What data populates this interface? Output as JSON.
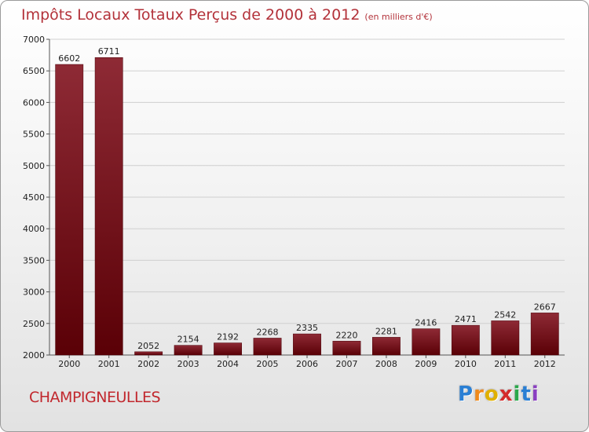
{
  "title": "Impôts Locaux Totaux Perçus de 2000 à 2012",
  "subtitle": "(en milliers d'€)",
  "location": "CHAMPIGNEULLES",
  "logo": {
    "letters": [
      "P",
      "r",
      "o",
      "x",
      "i",
      "t",
      "i"
    ],
    "colors": [
      "#2a7fd4",
      "#f08a1c",
      "#e0b000",
      "#d42a2a",
      "#2aa84a",
      "#2a7fd4",
      "#8a3fc1"
    ]
  },
  "chart_data": {
    "type": "bar",
    "categories": [
      "2000",
      "2001",
      "2002",
      "2003",
      "2004",
      "2005",
      "2006",
      "2007",
      "2008",
      "2009",
      "2010",
      "2011",
      "2012"
    ],
    "values": [
      6602,
      6711,
      2052,
      2154,
      2192,
      2268,
      2335,
      2220,
      2281,
      2416,
      2471,
      2542,
      2667
    ],
    "ylim": [
      2000,
      7000
    ],
    "yticks": [
      2000,
      2500,
      3000,
      3500,
      4000,
      4500,
      5000,
      5500,
      6000,
      6500,
      7000
    ],
    "grid": true,
    "bar_color": "#7a1420"
  }
}
